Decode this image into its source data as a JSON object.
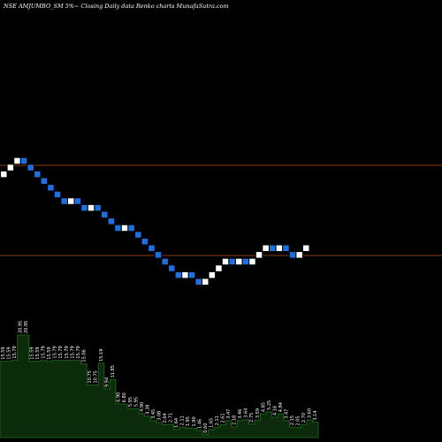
{
  "chart_title": "NSE AMJUMBO_SM 5%~  Closing Daily data  Renko  charts MunafaSutra.com",
  "colors": {
    "background": "#000000",
    "up_brick": "#ffffff",
    "down_brick": "#1e6fe0",
    "brick_border": "#000000",
    "hline": "#8b3a12",
    "volume_fill": "#0b2b0b",
    "volume_edge": "#1a5e1a",
    "volume_text": "#ffffff"
  },
  "chart_data": [
    {
      "type": "renko",
      "bricks": [
        {
          "dir": "up"
        },
        {
          "dir": "up"
        },
        {
          "dir": "up"
        },
        {
          "dir": "down"
        },
        {
          "dir": "down"
        },
        {
          "dir": "down"
        },
        {
          "dir": "down"
        },
        {
          "dir": "down"
        },
        {
          "dir": "down"
        },
        {
          "dir": "down"
        },
        {
          "dir": "up"
        },
        {
          "dir": "down"
        },
        {
          "dir": "down"
        },
        {
          "dir": "up"
        },
        {
          "dir": "down"
        },
        {
          "dir": "down"
        },
        {
          "dir": "down"
        },
        {
          "dir": "down"
        },
        {
          "dir": "up"
        },
        {
          "dir": "down"
        },
        {
          "dir": "down"
        },
        {
          "dir": "down"
        },
        {
          "dir": "down"
        },
        {
          "dir": "down"
        },
        {
          "dir": "down"
        },
        {
          "dir": "down"
        },
        {
          "dir": "down"
        },
        {
          "dir": "up"
        },
        {
          "dir": "down"
        },
        {
          "dir": "down"
        },
        {
          "dir": "up"
        },
        {
          "dir": "up"
        },
        {
          "dir": "up"
        },
        {
          "dir": "up"
        },
        {
          "dir": "down"
        },
        {
          "dir": "up"
        },
        {
          "dir": "down"
        },
        {
          "dir": "up"
        },
        {
          "dir": "up"
        },
        {
          "dir": "up"
        },
        {
          "dir": "down"
        },
        {
          "dir": "up"
        },
        {
          "dir": "down"
        },
        {
          "dir": "down"
        },
        {
          "dir": "up"
        },
        {
          "dir": "up"
        }
      ],
      "horizontal_lines": 2,
      "grid": false
    },
    {
      "type": "area",
      "series": [
        {
          "labels": [
            "15.59",
            "15.59",
            "15.79",
            "20.95",
            "20.95",
            "15.59",
            "15.59",
            "15.79",
            "15.59",
            "15.79",
            "15.79",
            "15.79",
            "15.79",
            "15.79",
            "15.06",
            "10.75",
            "10.75",
            "15.19",
            "9.94",
            "11.85",
            "6.90",
            "6.80",
            "5.95",
            "5.95",
            "4.90",
            "4.38",
            "3.45",
            "3.08",
            "2.64",
            "2.71",
            "1.64",
            "2.11",
            "1.95",
            "1.90",
            "1.46",
            "0.60",
            "1.65",
            "2.11",
            "2.61",
            "3.47",
            "2.18",
            "3.46",
            "3.64",
            "2.75",
            "3.59",
            "4.85",
            "5.25",
            "4.16",
            "4.84",
            "3.47",
            "2.15",
            "2.05",
            "2.70",
            "3.60",
            "3.14"
          ]
        }
      ]
    }
  ]
}
